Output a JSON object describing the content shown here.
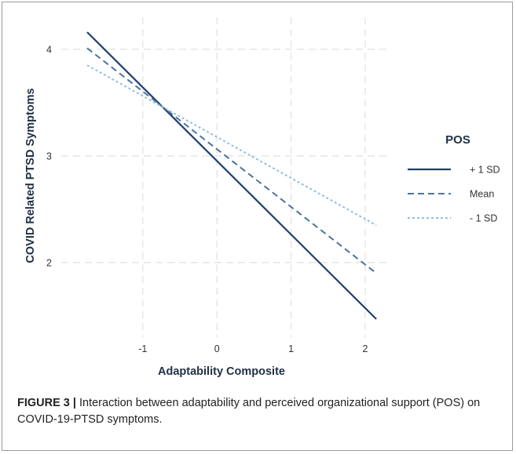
{
  "caption": {
    "label": "FIGURE 3 |",
    "text": " Interaction between adaptability and perceived organizational support (POS) on COVID-19-PTSD symptoms."
  },
  "chart_data": {
    "type": "line",
    "xlabel": "Adaptability Composite",
    "ylabel": "COVID Related PTSD Symptoms",
    "xlim": [
      -2.1,
      2.35
    ],
    "ylim": [
      1.3,
      4.3
    ],
    "xticks": [
      -1,
      0,
      1,
      2
    ],
    "yticks": [
      2,
      3,
      4
    ],
    "grid": true,
    "legend": {
      "title": "POS",
      "position": "right"
    },
    "series": [
      {
        "name": "+ 1 SD",
        "color": "#1c3f6e",
        "dash": "solid",
        "x": [
          -1.75,
          2.15
        ],
        "y": [
          4.16,
          1.47
        ]
      },
      {
        "name": "Mean",
        "color": "#4d7399",
        "dash": "dashed",
        "x": [
          -1.75,
          2.15
        ],
        "y": [
          4.01,
          1.9
        ]
      },
      {
        "name": "- 1 SD",
        "color": "#93bfdb",
        "dash": "dotted",
        "x": [
          -1.75,
          2.15
        ],
        "y": [
          3.85,
          2.35
        ]
      }
    ]
  }
}
